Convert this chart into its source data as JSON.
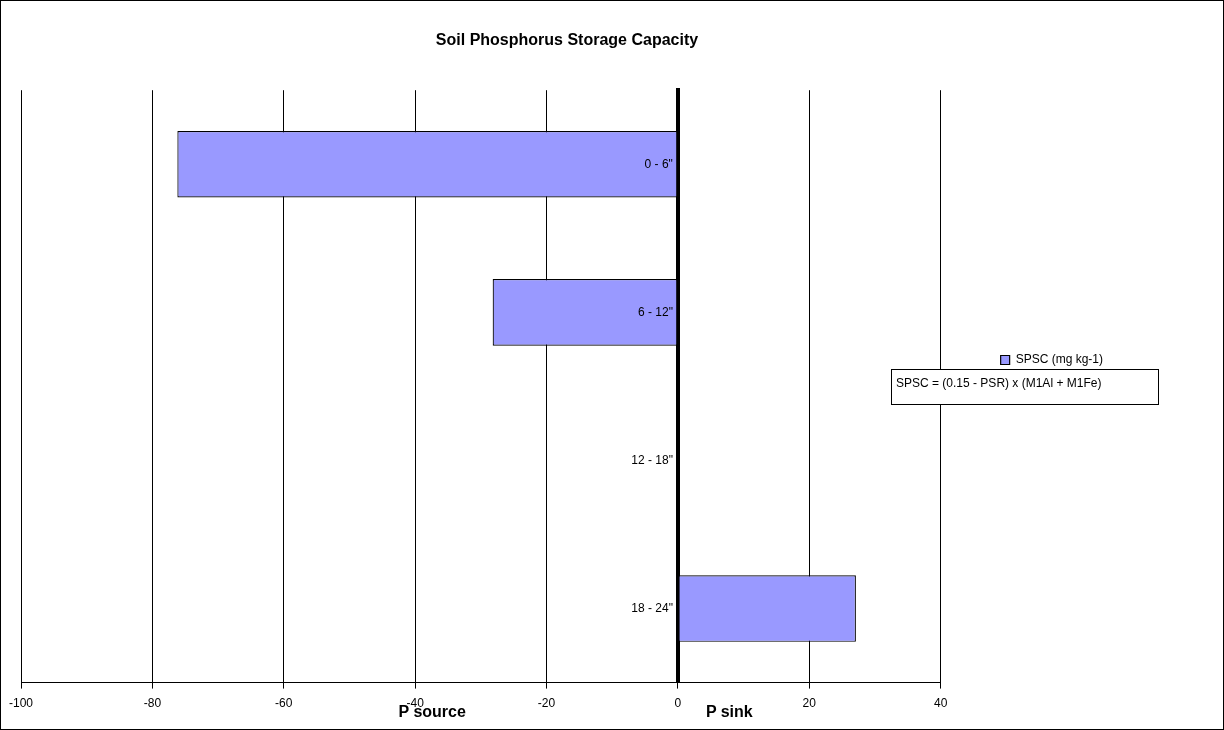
{
  "chart_data": {
    "type": "bar",
    "orientation": "horizontal",
    "title": "Soil Phosphorus Storage Capacity",
    "categories": [
      "0 - 6\"",
      "6 - 12\"",
      "12 - 18\"",
      "18 - 24\""
    ],
    "series": [
      {
        "name": "SPSC (mg kg-1)",
        "color": "#9999ff",
        "values": [
          -76.2,
          -28.2,
          0,
          27.1
        ]
      }
    ],
    "xlim": [
      -100,
      40
    ],
    "xticks": [
      -100,
      -80,
      -60,
      -40,
      -20,
      0,
      20,
      40
    ],
    "grid": "x",
    "legend": "right",
    "annotations": [
      "P source",
      "P sink",
      "SPSC = (0.15 - PSR) x (M1Al + M1Fe)"
    ]
  }
}
